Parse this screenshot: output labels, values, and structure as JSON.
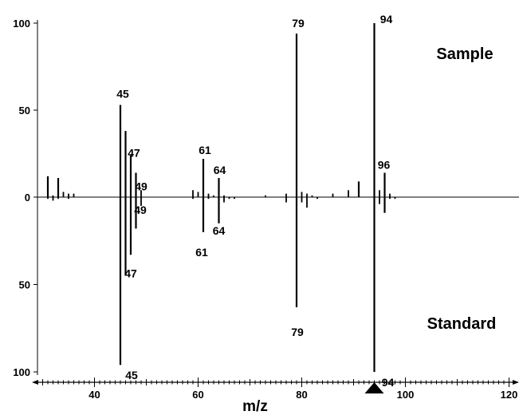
{
  "chart_data": {
    "type": "bar",
    "subtype": "mirror-mass-spectrum",
    "title": "",
    "xlabel": "m/z",
    "ylabel": "",
    "xlim": [
      29,
      121
    ],
    "ylim": [
      -100,
      100
    ],
    "x_ticks": [
      40,
      60,
      80,
      100,
      120
    ],
    "y_ticks": [
      {
        "value": 100,
        "label": "100"
      },
      {
        "value": 50,
        "label": "50"
      },
      {
        "value": 0,
        "label": "0"
      },
      {
        "value": -50,
        "label": "50"
      },
      {
        "value": -100,
        "label": "100"
      }
    ],
    "grid": false,
    "marker": {
      "x": 94,
      "shape": "triangle"
    },
    "series": [
      {
        "name": "Sample",
        "direction": "up",
        "points": [
          {
            "x": 31,
            "y": 12
          },
          {
            "x": 32,
            "y": 1
          },
          {
            "x": 33,
            "y": 11
          },
          {
            "x": 34,
            "y": 3
          },
          {
            "x": 35,
            "y": 2
          },
          {
            "x": 36,
            "y": 2
          },
          {
            "x": 45,
            "y": 53
          },
          {
            "x": 46,
            "y": 38
          },
          {
            "x": 47,
            "y": 24
          },
          {
            "x": 48,
            "y": 14
          },
          {
            "x": 49,
            "y": 4
          },
          {
            "x": 59,
            "y": 4
          },
          {
            "x": 60,
            "y": 3
          },
          {
            "x": 61,
            "y": 22
          },
          {
            "x": 62,
            "y": 2
          },
          {
            "x": 63,
            "y": 1
          },
          {
            "x": 64,
            "y": 11
          },
          {
            "x": 65,
            "y": 1
          },
          {
            "x": 73,
            "y": 1
          },
          {
            "x": 77,
            "y": 2
          },
          {
            "x": 79,
            "y": 94
          },
          {
            "x": 80,
            "y": 3
          },
          {
            "x": 81,
            "y": 2
          },
          {
            "x": 82,
            "y": 1
          },
          {
            "x": 86,
            "y": 2
          },
          {
            "x": 89,
            "y": 4
          },
          {
            "x": 91,
            "y": 9
          },
          {
            "x": 94,
            "y": 100
          },
          {
            "x": 95,
            "y": 4
          },
          {
            "x": 96,
            "y": 14
          },
          {
            "x": 97,
            "y": 2
          }
        ]
      },
      {
        "name": "Standard",
        "direction": "down",
        "points": [
          {
            "x": 31,
            "y": 1
          },
          {
            "x": 32,
            "y": 2
          },
          {
            "x": 33,
            "y": 1
          },
          {
            "x": 35,
            "y": 1
          },
          {
            "x": 45,
            "y": 96
          },
          {
            "x": 46,
            "y": 45
          },
          {
            "x": 47,
            "y": 33
          },
          {
            "x": 48,
            "y": 18
          },
          {
            "x": 49,
            "y": 5
          },
          {
            "x": 59,
            "y": 1
          },
          {
            "x": 61,
            "y": 20
          },
          {
            "x": 62,
            "y": 1
          },
          {
            "x": 64,
            "y": 15
          },
          {
            "x": 65,
            "y": 3
          },
          {
            "x": 66,
            "y": 1
          },
          {
            "x": 67,
            "y": 1
          },
          {
            "x": 77,
            "y": 3
          },
          {
            "x": 79,
            "y": 63
          },
          {
            "x": 80,
            "y": 3
          },
          {
            "x": 81,
            "y": 6
          },
          {
            "x": 83,
            "y": 1
          },
          {
            "x": 94,
            "y": 100
          },
          {
            "x": 95,
            "y": 4
          },
          {
            "x": 96,
            "y": 9
          },
          {
            "x": 97,
            "y": 1
          },
          {
            "x": 98,
            "y": 1
          }
        ]
      }
    ],
    "peak_labels": [
      {
        "series": "Sample",
        "x": 45,
        "text": "45",
        "dx": 3,
        "dy": -7
      },
      {
        "series": "Sample",
        "x": 47,
        "text": "47",
        "dx": 4,
        "dy": 4
      },
      {
        "series": "Sample",
        "x": 49,
        "text": "49",
        "dx": 0,
        "dy": 2
      },
      {
        "series": "Sample",
        "x": 61,
        "text": "61",
        "dx": 2,
        "dy": -4
      },
      {
        "series": "Sample",
        "x": 64,
        "text": "64",
        "dx": 1,
        "dy": -3
      },
      {
        "series": "Sample",
        "x": 79,
        "text": "79",
        "dx": 2,
        "dy": -6
      },
      {
        "series": "Sample",
        "x": 94,
        "text": "94",
        "dx": 15,
        "dy": 2
      },
      {
        "series": "Sample",
        "x": 96,
        "text": "96",
        "dx": -1,
        "dy": -3
      },
      {
        "series": "Standard",
        "x": 45,
        "text": "45",
        "dx": 14,
        "dy": 4
      },
      {
        "series": "Standard",
        "x": 47,
        "text": "47",
        "dx": 0,
        "dy": 14
      },
      {
        "series": "Standard",
        "x": 49,
        "text": "49",
        "dx": -1,
        "dy": -4
      },
      {
        "series": "Standard",
        "x": 61,
        "text": "61",
        "dx": -2,
        "dy": 16
      },
      {
        "series": "Standard",
        "x": 64,
        "text": "64",
        "dx": 0,
        "dy": 0
      },
      {
        "series": "Standard",
        "x": 79,
        "text": "79",
        "dx": 1,
        "dy": 22
      },
      {
        "series": "Standard",
        "x": 94,
        "text": "94",
        "dx": 17,
        "dy": 4
      }
    ],
    "panel_labels": [
      {
        "text": "Sample",
        "series": "Sample"
      },
      {
        "text": "Standard",
        "series": "Standard"
      }
    ]
  }
}
